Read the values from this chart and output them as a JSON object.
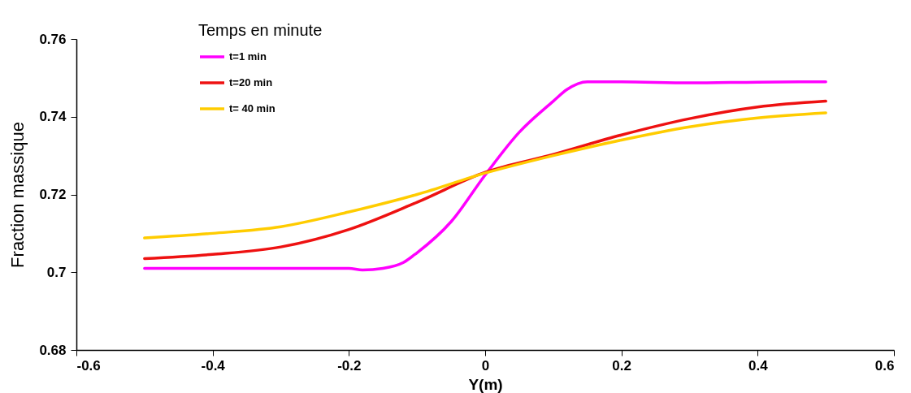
{
  "chart_data": {
    "type": "line",
    "xlabel": "Y(m)",
    "ylabel": "Fraction massique",
    "legend_title": "Temps en minute",
    "legend": "top left",
    "grid": false,
    "marker": "none",
    "line_style": "solid",
    "xlim": [
      -0.6,
      0.6
    ],
    "xticks": [
      -0.6,
      -0.4,
      -0.2,
      0,
      0.2,
      0.4,
      0.6
    ],
    "ylim": [
      0.68,
      0.76
    ],
    "yticks": [
      0.68,
      0.7,
      0.72,
      0.74,
      0.76
    ],
    "series": [
      {
        "name": "t=1 min",
        "color": "#ff00ff",
        "x": [
          -0.5,
          -0.4,
          -0.3,
          -0.25,
          -0.2,
          -0.18,
          -0.15,
          -0.12,
          -0.1,
          -0.05,
          0,
          0.05,
          0.1,
          0.12,
          0.15,
          0.2,
          0.3,
          0.4,
          0.5
        ],
        "values": [
          0.701,
          0.701,
          0.701,
          0.701,
          0.701,
          0.7006,
          0.701,
          0.7025,
          0.705,
          0.713,
          0.725,
          0.736,
          0.744,
          0.747,
          0.749,
          0.749,
          0.7487,
          0.7489,
          0.749
        ]
      },
      {
        "name": "t=20 min",
        "color": "#ee1111",
        "x": [
          -0.5,
          -0.4,
          -0.3,
          -0.2,
          -0.1,
          0,
          0.1,
          0.2,
          0.3,
          0.4,
          0.5
        ],
        "values": [
          0.7035,
          0.7046,
          0.7065,
          0.711,
          0.718,
          0.7257,
          0.7303,
          0.7353,
          0.7395,
          0.7425,
          0.744
        ]
      },
      {
        "name": "t= 40 min",
        "color": "#ffcc00",
        "x": [
          -0.5,
          -0.4,
          -0.3,
          -0.2,
          -0.1,
          0,
          0.1,
          0.2,
          0.3,
          0.4,
          0.5
        ],
        "values": [
          0.7088,
          0.71,
          0.7117,
          0.7155,
          0.72,
          0.7255,
          0.73,
          0.734,
          0.7374,
          0.7397,
          0.741
        ]
      }
    ]
  }
}
